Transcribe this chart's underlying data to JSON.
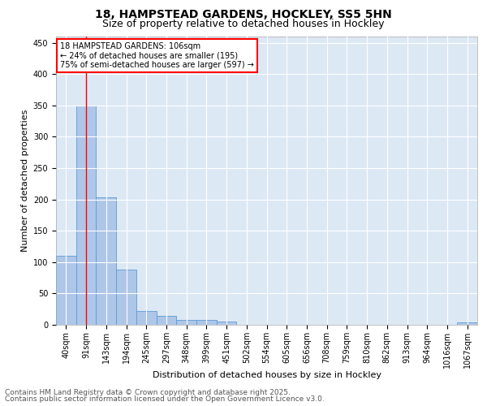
{
  "title_line1": "18, HAMPSTEAD GARDENS, HOCKLEY, SS5 5HN",
  "title_line2": "Size of property relative to detached houses in Hockley",
  "xlabel": "Distribution of detached houses by size in Hockley",
  "ylabel": "Number of detached properties",
  "bar_color": "#aec6e8",
  "bar_edge_color": "#5b9bd5",
  "background_color": "#dde8f5",
  "grid_color": "#ffffff",
  "categories": [
    "40sqm",
    "91sqm",
    "143sqm",
    "194sqm",
    "245sqm",
    "297sqm",
    "348sqm",
    "399sqm",
    "451sqm",
    "502sqm",
    "554sqm",
    "605sqm",
    "656sqm",
    "708sqm",
    "759sqm",
    "810sqm",
    "862sqm",
    "913sqm",
    "964sqm",
    "1016sqm",
    "1067sqm"
  ],
  "values": [
    110,
    350,
    203,
    88,
    22,
    14,
    8,
    8,
    5,
    0,
    0,
    0,
    0,
    0,
    0,
    0,
    0,
    0,
    0,
    0,
    4
  ],
  "ylim": [
    0,
    460
  ],
  "yticks": [
    0,
    50,
    100,
    150,
    200,
    250,
    300,
    350,
    400,
    450
  ],
  "annotation_text_line1": "18 HAMPSTEAD GARDENS: 106sqm",
  "annotation_text_line2": "← 24% of detached houses are smaller (195)",
  "annotation_text_line3": "75% of semi-detached houses are larger (597) →",
  "red_line_x": 1.0,
  "footer_line1": "Contains HM Land Registry data © Crown copyright and database right 2025.",
  "footer_line2": "Contains public sector information licensed under the Open Government Licence v3.0.",
  "annotation_fontsize": 7,
  "title_fontsize1": 10,
  "title_fontsize2": 9,
  "axis_label_fontsize": 8,
  "tick_fontsize": 7,
  "footer_fontsize": 6.5
}
